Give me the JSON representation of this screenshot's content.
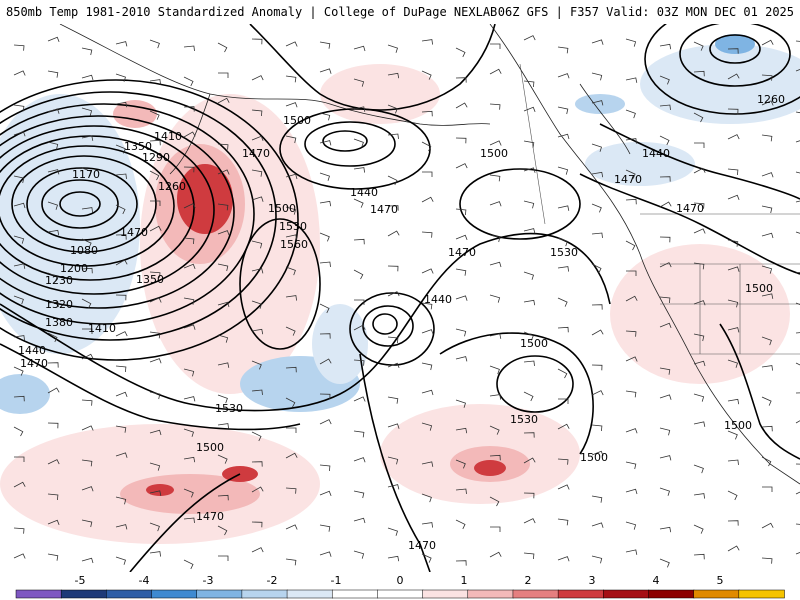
{
  "header": {
    "title_left": "850mb Temp 1981-2010 Standardized Anomaly | College of DuPage NEXLAB",
    "title_right": "06Z GFS | F357 Valid: 03Z MON DEC 01 2025"
  },
  "colors": {
    "background": "#ffffff",
    "contour": "#000000",
    "anomaly_scale": [
      "#7e57c2",
      "#1e3a78",
      "#2d5da6",
      "#3f8ad1",
      "#7fb4e3",
      "#b7d4ee",
      "#dbe8f5",
      "#ffffff",
      "#ffffff",
      "#fbe3e3",
      "#f3b9b9",
      "#e57f80",
      "#cf3b3f",
      "#a50f15",
      "#8c0000",
      "#e08a00",
      "#f5c400"
    ]
  },
  "map": {
    "contour_labels": [
      "1410",
      "1350",
      "1290",
      "1170",
      "1260",
      "1080",
      "1200",
      "1230",
      "1320",
      "1380",
      "1410",
      "1440",
      "1470",
      "1350",
      "1500",
      "1470",
      "1440",
      "1470",
      "1500",
      "1530",
      "1560",
      "1470",
      "1530",
      "1440",
      "1500",
      "1530",
      "1500",
      "1470",
      "1500",
      "1470",
      "1260",
      "1440",
      "1470",
      "1470",
      "1500",
      "1500",
      "1530",
      "1500",
      "1470"
    ]
  },
  "colorbar": {
    "ticks": [
      "-5",
      "-4",
      "-3",
      "-2",
      "-1",
      "0",
      "1",
      "2",
      "3",
      "4",
      "5"
    ]
  }
}
